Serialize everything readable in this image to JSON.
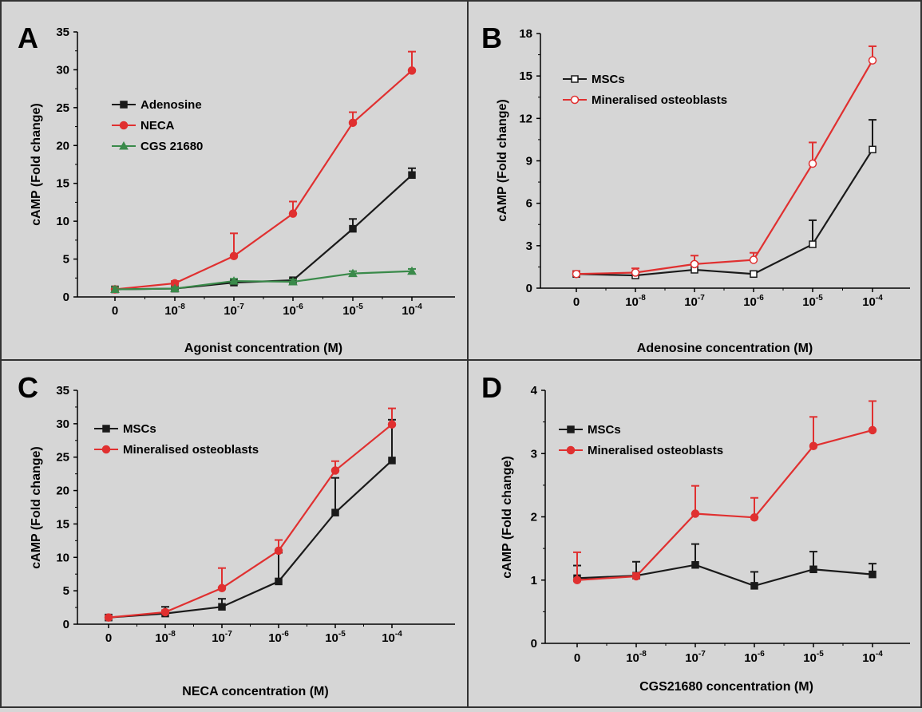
{
  "figure": {
    "background": "#d6d6d6",
    "border_color": "#333333",
    "colors": {
      "black": "#1a1a1a",
      "red": "#e03030",
      "green": "#3a8a4a"
    }
  },
  "chart_data": [
    {
      "panel": "A",
      "type": "line",
      "xlabel": "Agonist concentration (M)",
      "ylabel": "cAMP (Fold change)",
      "categories": [
        {
          "base": "0",
          "exp": ""
        },
        {
          "base": "10",
          "exp": "-8"
        },
        {
          "base": "10",
          "exp": "-7"
        },
        {
          "base": "10",
          "exp": "-6"
        },
        {
          "base": "10",
          "exp": "-5"
        },
        {
          "base": "10",
          "exp": "-4"
        }
      ],
      "ylim": [
        0,
        35
      ],
      "yticks": [
        0,
        5,
        10,
        15,
        20,
        25,
        30,
        35
      ],
      "legend": "top-left",
      "series": [
        {
          "name": "Adenosine",
          "color": "#1a1a1a",
          "marker": "square",
          "values": [
            1.0,
            1.1,
            1.9,
            2.2,
            9.0,
            16.1
          ],
          "errors": [
            0.1,
            0.2,
            0.2,
            0.2,
            1.3,
            0.9
          ]
        },
        {
          "name": "NECA",
          "color": "#e03030",
          "marker": "circle",
          "values": [
            1.0,
            1.8,
            5.4,
            11.0,
            23.0,
            29.9
          ],
          "errors": [
            0.2,
            0.3,
            3.0,
            1.6,
            1.4,
            2.5
          ]
        },
        {
          "name": "CGS 21680",
          "color": "#3a8a4a",
          "marker": "triangle",
          "values": [
            1.0,
            1.1,
            2.1,
            2.0,
            3.1,
            3.4
          ],
          "errors": [
            0.3,
            0.2,
            0.3,
            0.3,
            0.3,
            0.3
          ]
        }
      ]
    },
    {
      "panel": "B",
      "type": "line",
      "xlabel": "Adenosine concentration (M)",
      "ylabel": "cAMP (Fold change)",
      "categories": [
        {
          "base": "0",
          "exp": ""
        },
        {
          "base": "10",
          "exp": "-8"
        },
        {
          "base": "10",
          "exp": "-7"
        },
        {
          "base": "10",
          "exp": "-6"
        },
        {
          "base": "10",
          "exp": "-5"
        },
        {
          "base": "10",
          "exp": "-4"
        }
      ],
      "ylim": [
        0,
        18
      ],
      "yticks": [
        0,
        3,
        6,
        9,
        12,
        15,
        18
      ],
      "legend": "top-left",
      "series": [
        {
          "name": "MSCs",
          "color": "#1a1a1a",
          "marker": "square-open",
          "values": [
            1.0,
            0.9,
            1.3,
            1.0,
            3.1,
            9.8
          ],
          "errors": [
            0.2,
            0.2,
            0.5,
            0.2,
            1.7,
            2.1
          ]
        },
        {
          "name": "Mineralised osteoblasts",
          "color": "#e03030",
          "marker": "circle-open",
          "values": [
            1.0,
            1.1,
            1.7,
            2.0,
            8.8,
            16.1
          ],
          "errors": [
            0.2,
            0.3,
            0.6,
            0.5,
            1.5,
            1.0
          ]
        }
      ]
    },
    {
      "panel": "C",
      "type": "line",
      "xlabel": "NECA concentration (M)",
      "ylabel": "cAMP (Fold change)",
      "categories": [
        {
          "base": "0",
          "exp": ""
        },
        {
          "base": "10",
          "exp": "-8"
        },
        {
          "base": "10",
          "exp": "-7"
        },
        {
          "base": "10",
          "exp": "-6"
        },
        {
          "base": "10",
          "exp": "-5"
        },
        {
          "base": "10",
          "exp": "-4"
        }
      ],
      "ylim": [
        0,
        35
      ],
      "yticks": [
        0,
        5,
        10,
        15,
        20,
        25,
        30,
        35
      ],
      "legend": "top-left",
      "series": [
        {
          "name": "MSCs",
          "color": "#1a1a1a",
          "marker": "square",
          "values": [
            1.0,
            1.6,
            2.6,
            6.4,
            16.7,
            24.5
          ],
          "errors": [
            0.1,
            1.0,
            1.2,
            4.3,
            5.2,
            6.1
          ]
        },
        {
          "name": "Mineralised osteoblasts",
          "color": "#e03030",
          "marker": "circle",
          "values": [
            1.0,
            1.8,
            5.4,
            11.0,
            23.0,
            29.9
          ],
          "errors": [
            0.1,
            0.3,
            3.0,
            1.6,
            1.4,
            2.4
          ]
        }
      ]
    },
    {
      "panel": "D",
      "type": "line",
      "xlabel": "CGS21680 concentration (M)",
      "ylabel": "cAMP (Fold change)",
      "categories": [
        {
          "base": "0",
          "exp": ""
        },
        {
          "base": "10",
          "exp": "-8"
        },
        {
          "base": "10",
          "exp": "-7"
        },
        {
          "base": "10",
          "exp": "-6"
        },
        {
          "base": "10",
          "exp": "-5"
        },
        {
          "base": "10",
          "exp": "-4"
        }
      ],
      "ylim": [
        0,
        4
      ],
      "yticks": [
        0,
        1,
        2,
        3,
        4
      ],
      "legend": "top-left",
      "series": [
        {
          "name": "MSCs",
          "color": "#1a1a1a",
          "marker": "square",
          "values": [
            1.03,
            1.07,
            1.24,
            0.91,
            1.17,
            1.09
          ],
          "errors": [
            0.2,
            0.22,
            0.33,
            0.22,
            0.28,
            0.17
          ]
        },
        {
          "name": "Mineralised osteoblasts",
          "color": "#e03030",
          "marker": "circle",
          "values": [
            1.0,
            1.06,
            2.05,
            1.99,
            3.12,
            3.37
          ],
          "errors": [
            0.44,
            0.05,
            0.44,
            0.31,
            0.46,
            0.46
          ]
        }
      ]
    }
  ]
}
